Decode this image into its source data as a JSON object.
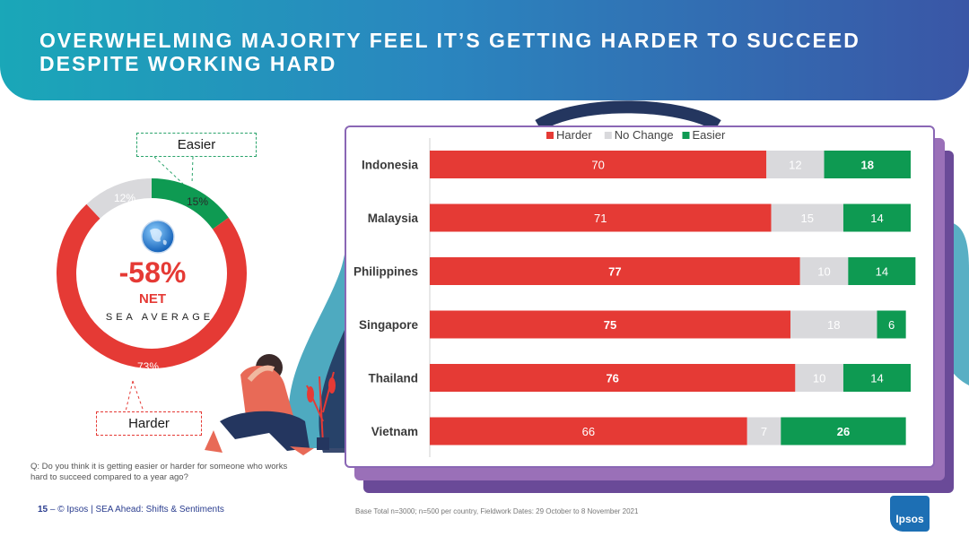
{
  "title": "OVERWHELMING MAJORITY FEEL IT’S GETTING HARDER TO SUCCEED DESPITE WORKING HARD",
  "colors": {
    "harder": "#e53a35",
    "no_change": "#d9d9dc",
    "easier": "#0e9a52",
    "banner_start": "#1aa7b8",
    "banner_end": "#3a56a6",
    "panel_border": "#8a67b5"
  },
  "donut": {
    "segments": [
      {
        "name": "Harder",
        "value": 73,
        "label": "73%",
        "color": "#e53a35"
      },
      {
        "name": "No Change",
        "value": 12,
        "label": "12%",
        "color": "#d9d9dc"
      },
      {
        "name": "Easier",
        "value": 15,
        "label": "15%",
        "color": "#0e9a52"
      }
    ],
    "net_value": "-58%",
    "net_label": "NET",
    "sea_average": "SEA AVERAGE",
    "callout_easier": "Easier",
    "callout_harder": "Harder",
    "globe_icon": "globe-icon"
  },
  "chart_data": [
    {
      "type": "pie",
      "title": "SEA AVERAGE",
      "categories": [
        "Harder",
        "No Change",
        "Easier"
      ],
      "values": [
        73,
        12,
        15
      ],
      "center_text": "-58% NET"
    },
    {
      "type": "bar",
      "orientation": "horizontal",
      "stacked": true,
      "categories": [
        "Indonesia",
        "Malaysia",
        "Philippines",
        "Singapore",
        "Thailand",
        "Vietnam"
      ],
      "series": [
        {
          "name": "Harder",
          "values": [
            70,
            71,
            77,
            75,
            76,
            66
          ],
          "color": "#e53a35"
        },
        {
          "name": "No Change",
          "values": [
            12,
            15,
            10,
            18,
            10,
            7
          ],
          "color": "#d9d9dc"
        },
        {
          "name": "Easier",
          "values": [
            18,
            14,
            14,
            6,
            14,
            26
          ],
          "color": "#0e9a52"
        }
      ],
      "bold_labels": {
        "Harder": [
          false,
          false,
          true,
          true,
          true,
          false
        ],
        "Easier": [
          true,
          false,
          false,
          false,
          false,
          true
        ]
      },
      "xlim": [
        0,
        100
      ],
      "legend": "top-center"
    }
  ],
  "question": "Q: Do you think it is getting easier or harder for someone who works hard to succeed compared to a year ago?",
  "footer": {
    "page_number": "15",
    "separator": " – ",
    "copyright": "© Ipsos | SEA Ahead: Shifts & Sentiments"
  },
  "base_note": "Base Total n=3000; n=500 per country, Fieldwork Dates: 29 October to 8 November  2021",
  "logo_text": "Ipsos"
}
